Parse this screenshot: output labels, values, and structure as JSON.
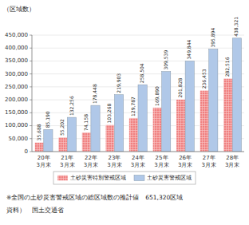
{
  "chart_data": {
    "type": "bar",
    "ylabel": "（区域数）",
    "categories": [
      "20年\n3月末",
      "21年\n3月末",
      "22年\n3月末",
      "23年\n3月末",
      "24年\n3月末",
      "25年\n3月末",
      "26年\n3月末",
      "27年\n3月末",
      "28年\n3月末"
    ],
    "series": [
      {
        "name": "土砂災害特別警戒区域",
        "color": "#F08080",
        "values": [
          35688,
          55202,
          74158,
          103268,
          129787,
          169890,
          201828,
          236453,
          282516
        ],
        "value_labels": [
          "35,688",
          "55,202",
          "74,158",
          "103,268",
          "129,787",
          "169,890",
          "201,828",
          "236,453",
          "282,516"
        ]
      },
      {
        "name": "土砂災害警戒区域",
        "color": "#B0C8E8",
        "values": [
          85190,
          132256,
          178448,
          219903,
          258504,
          309539,
          349844,
          395894,
          438321
        ],
        "value_labels": [
          "85,190",
          "132,256",
          "178,448",
          "219,903",
          "258,504",
          "309,539",
          "349,844",
          "395,894",
          "438,321"
        ]
      }
    ],
    "ylim": [
      0,
      450000
    ],
    "yticks": [
      0,
      {
        "value": 50000,
        "label": "50,000"
      },
      {
        "value": 100000,
        "label": "100,000"
      },
      {
        "value": 150000,
        "label": "150,000"
      },
      {
        "value": 200000,
        "label": "200,000"
      },
      {
        "value": 250000,
        "label": "250,000"
      },
      {
        "value": 300000,
        "label": "300,000"
      },
      {
        "value": 350000,
        "label": "350,000"
      },
      {
        "value": 400000,
        "label": "400,000"
      },
      {
        "value": 450000,
        "label": "450,000"
      }
    ],
    "grid": true,
    "data_labels": true,
    "legend": "bottom",
    "annotations": [
      "※全国の土砂災害警戒区域の総区域数の推計値　651,320区域",
      "資料）　国土交通省"
    ]
  }
}
